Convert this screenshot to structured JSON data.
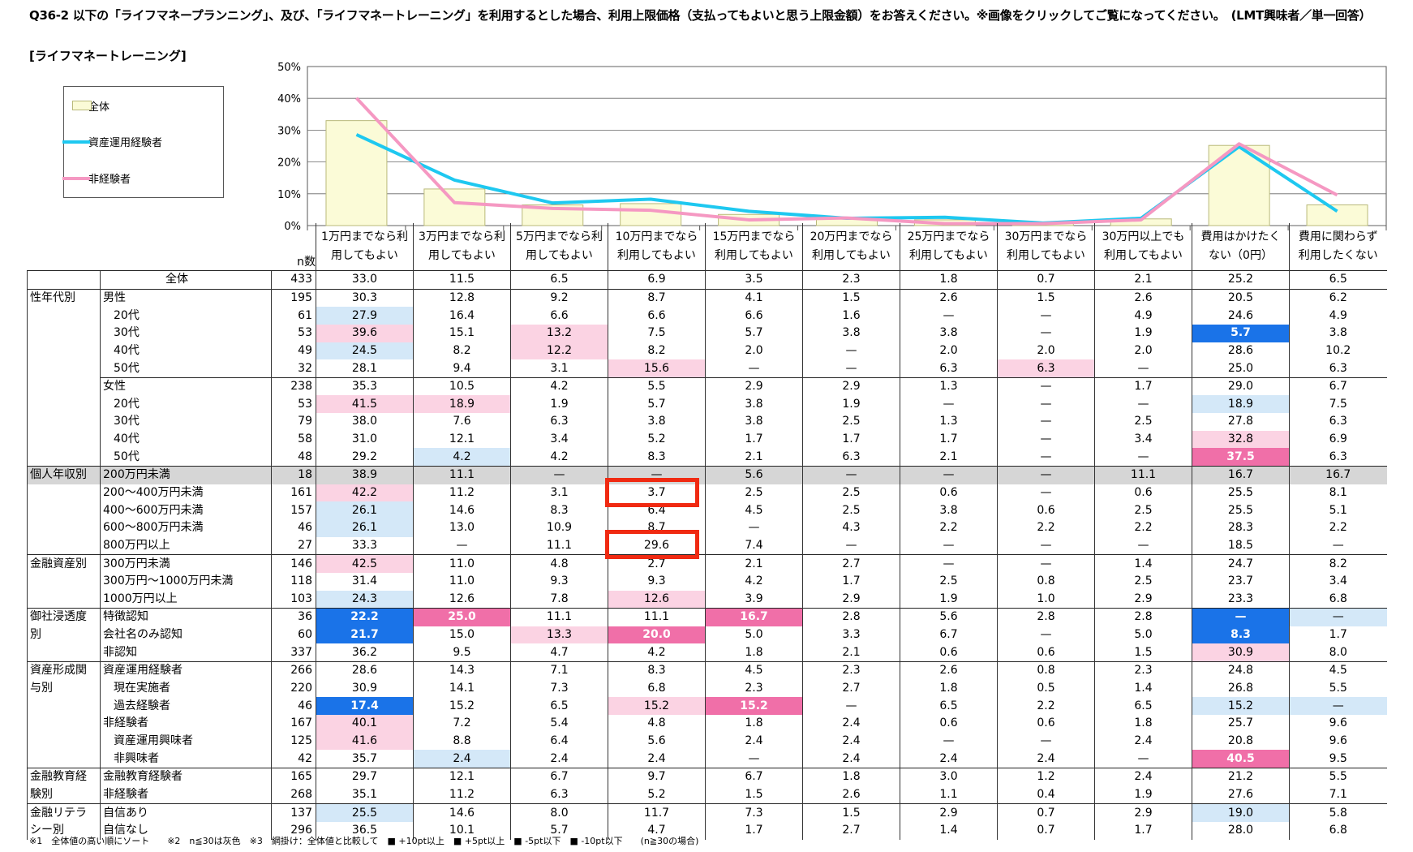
{
  "header": {
    "question": "Q36-2 以下の「ライフマネープランニング」、及び、「ライフマネートレーニング」を利用するとした場合、利用上限価格（支払ってもよいと思う上限金額）をお答えください。※画像をクリックしてご覧になってください。　(LMT興味者／単一回答）",
    "section": "[ライフマネートレーニング]"
  },
  "colors": {
    "total_bar": "#fbfbd7",
    "total_bar_border": "#b9b97a",
    "experienced": "#1ec8f0",
    "non_experienced": "#f598c2"
  },
  "chart_data": {
    "type": "bar",
    "categories": [
      "1万円までなら利用してもよい",
      "3万円までなら利用してもよい",
      "5万円までなら利用してもよい",
      "10万円までなら利用してもよい",
      "15万円までなら利用してもよい",
      "20万円までなら利用してもよい",
      "25万円までなら利用してもよい",
      "30万円までなら利用してもよい",
      "30万円以上でも利用してもよい",
      "費用はかけたくない（0円）",
      "費用に関わらず利用したくない"
    ],
    "series": [
      {
        "name": "全体",
        "kind": "bar",
        "values": [
          33.0,
          11.5,
          6.5,
          6.9,
          3.5,
          2.3,
          1.8,
          0.7,
          2.1,
          25.2,
          6.5
        ]
      },
      {
        "name": "資産運用経験者",
        "kind": "line",
        "values": [
          28.6,
          14.3,
          7.1,
          8.3,
          4.5,
          2.3,
          2.6,
          0.8,
          2.3,
          24.8,
          4.5
        ]
      },
      {
        "name": "非経験者",
        "kind": "line",
        "values": [
          40.1,
          7.2,
          5.4,
          4.8,
          1.8,
          2.4,
          0.6,
          0.6,
          1.8,
          25.7,
          9.6
        ]
      }
    ],
    "yticks": [
      "0%",
      "10%",
      "20%",
      "30%",
      "40%",
      "50%"
    ],
    "ylim": [
      0,
      50
    ],
    "legend_position": "top-left"
  },
  "table": {
    "n_label": "n数",
    "rows": [
      {
        "g": "",
        "s": "全体",
        "n": "433",
        "v": [
          "33.0",
          "11.5",
          "6.5",
          "6.9",
          "3.5",
          "2.3",
          "1.8",
          "0.7",
          "2.1",
          "25.2",
          "6.5"
        ],
        "h": {},
        "top": true,
        "center": true
      },
      {
        "g": "性年代別",
        "s": "男性",
        "n": "195",
        "v": [
          "30.3",
          "12.8",
          "9.2",
          "8.7",
          "4.1",
          "1.5",
          "2.6",
          "1.5",
          "2.6",
          "20.5",
          "6.2"
        ],
        "h": {},
        "top": true
      },
      {
        "g": "",
        "s": "20代",
        "n": "61",
        "v": [
          "27.9",
          "16.4",
          "6.6",
          "6.6",
          "6.6",
          "1.6",
          "—",
          "—",
          "4.9",
          "24.6",
          "4.9"
        ],
        "h": {
          "0": "m5"
        },
        "ind": true
      },
      {
        "g": "",
        "s": "30代",
        "n": "53",
        "v": [
          "39.6",
          "15.1",
          "13.2",
          "7.5",
          "5.7",
          "3.8",
          "3.8",
          "—",
          "1.9",
          "5.7",
          "3.8"
        ],
        "h": {
          "0": "p5",
          "2": "p5",
          "9": "m10"
        },
        "ind": true
      },
      {
        "g": "",
        "s": "40代",
        "n": "49",
        "v": [
          "24.5",
          "8.2",
          "12.2",
          "8.2",
          "2.0",
          "—",
          "2.0",
          "2.0",
          "2.0",
          "28.6",
          "10.2"
        ],
        "h": {
          "0": "m5",
          "2": "p5"
        },
        "ind": true
      },
      {
        "g": "",
        "s": "50代",
        "n": "32",
        "v": [
          "28.1",
          "9.4",
          "3.1",
          "15.6",
          "—",
          "—",
          "6.3",
          "6.3",
          "—",
          "25.0",
          "6.3"
        ],
        "h": {
          "3": "p5",
          "7": "p5"
        },
        "ind": true
      },
      {
        "g": "",
        "s": "女性",
        "n": "238",
        "v": [
          "35.3",
          "10.5",
          "4.2",
          "5.5",
          "2.9",
          "2.9",
          "1.3",
          "—",
          "1.7",
          "29.0",
          "6.7"
        ],
        "h": {},
        "top": true,
        "subtop": true
      },
      {
        "g": "",
        "s": "20代",
        "n": "53",
        "v": [
          "41.5",
          "18.9",
          "1.9",
          "5.7",
          "3.8",
          "1.9",
          "—",
          "—",
          "—",
          "18.9",
          "7.5"
        ],
        "h": {
          "0": "p5",
          "1": "p5",
          "9": "m5"
        },
        "ind": true
      },
      {
        "g": "",
        "s": "30代",
        "n": "79",
        "v": [
          "38.0",
          "7.6",
          "6.3",
          "3.8",
          "3.8",
          "2.5",
          "1.3",
          "—",
          "2.5",
          "27.8",
          "6.3"
        ],
        "h": {},
        "ind": true
      },
      {
        "g": "",
        "s": "40代",
        "n": "58",
        "v": [
          "31.0",
          "12.1",
          "3.4",
          "5.2",
          "1.7",
          "1.7",
          "1.7",
          "—",
          "3.4",
          "32.8",
          "6.9"
        ],
        "h": {
          "9": "p5"
        },
        "ind": true
      },
      {
        "g": "",
        "s": "50代",
        "n": "48",
        "v": [
          "29.2",
          "4.2",
          "4.2",
          "8.3",
          "2.1",
          "6.3",
          "2.1",
          "—",
          "—",
          "37.5",
          "6.3"
        ],
        "h": {
          "1": "m5",
          "9": "p10"
        },
        "ind": true
      },
      {
        "g": "個人年収別",
        "s": "200万円未満",
        "n": "18",
        "v": [
          "38.9",
          "11.1",
          "—",
          "—",
          "5.6",
          "—",
          "—",
          "—",
          "11.1",
          "16.7",
          "16.7"
        ],
        "h": {},
        "top": true,
        "gray": true
      },
      {
        "g": "",
        "s": "200～400万円未満",
        "n": "161",
        "v": [
          "42.2",
          "11.2",
          "3.1",
          "3.7",
          "2.5",
          "2.5",
          "0.6",
          "—",
          "0.6",
          "25.5",
          "8.1"
        ],
        "h": {
          "0": "p5"
        }
      },
      {
        "g": "",
        "s": "400～600万円未満",
        "n": "157",
        "v": [
          "26.1",
          "14.6",
          "8.3",
          "6.4",
          "4.5",
          "2.5",
          "3.8",
          "0.6",
          "2.5",
          "25.5",
          "5.1"
        ],
        "h": {
          "0": "m5"
        }
      },
      {
        "g": "",
        "s": "600～800万円未満",
        "n": "46",
        "v": [
          "26.1",
          "13.0",
          "10.9",
          "8.7",
          "—",
          "4.3",
          "2.2",
          "2.2",
          "2.2",
          "28.3",
          "2.2"
        ],
        "h": {
          "0": "m5"
        }
      },
      {
        "g": "",
        "s": "800万円以上",
        "n": "27",
        "v": [
          "33.3",
          "—",
          "11.1",
          "29.6",
          "7.4",
          "—",
          "—",
          "—",
          "—",
          "18.5",
          "—"
        ],
        "h": {}
      },
      {
        "g": "金融資産別",
        "s": "300万円未満",
        "n": "146",
        "v": [
          "42.5",
          "11.0",
          "4.8",
          "2.7",
          "2.1",
          "2.7",
          "—",
          "—",
          "1.4",
          "24.7",
          "8.2"
        ],
        "h": {
          "0": "p5"
        },
        "top": true
      },
      {
        "g": "",
        "s": "300万円～1000万円未満",
        "n": "118",
        "v": [
          "31.4",
          "11.0",
          "9.3",
          "9.3",
          "4.2",
          "1.7",
          "2.5",
          "0.8",
          "2.5",
          "23.7",
          "3.4"
        ],
        "h": {}
      },
      {
        "g": "",
        "s": "1000万円以上",
        "n": "103",
        "v": [
          "24.3",
          "12.6",
          "7.8",
          "12.6",
          "3.9",
          "2.9",
          "1.9",
          "1.0",
          "2.9",
          "23.3",
          "6.8"
        ],
        "h": {
          "0": "m5",
          "3": "p5"
        }
      },
      {
        "g": "御社浸透度",
        "s": "特徴認知",
        "n": "36",
        "v": [
          "22.2",
          "25.0",
          "11.1",
          "11.1",
          "16.7",
          "2.8",
          "5.6",
          "2.8",
          "2.8",
          "—",
          "—"
        ],
        "h": {
          "0": "m10",
          "1": "p10",
          "4": "p10",
          "9": "m10",
          "10": "m5"
        },
        "top": true
      },
      {
        "g": "別",
        "s": "会社名のみ認知",
        "n": "60",
        "v": [
          "21.7",
          "15.0",
          "13.3",
          "20.0",
          "5.0",
          "3.3",
          "6.7",
          "—",
          "5.0",
          "8.3",
          "1.7"
        ],
        "h": {
          "0": "m10",
          "2": "p5",
          "3": "p10",
          "9": "m10"
        }
      },
      {
        "g": "",
        "s": "非認知",
        "n": "337",
        "v": [
          "36.2",
          "9.5",
          "4.7",
          "4.2",
          "1.8",
          "2.1",
          "0.6",
          "0.6",
          "1.5",
          "30.9",
          "8.0"
        ],
        "h": {
          "9": "p5"
        }
      },
      {
        "g": "資産形成関",
        "s": "資産運用経験者",
        "n": "266",
        "v": [
          "28.6",
          "14.3",
          "7.1",
          "8.3",
          "4.5",
          "2.3",
          "2.6",
          "0.8",
          "2.3",
          "24.8",
          "4.5"
        ],
        "h": {},
        "top": true
      },
      {
        "g": "与別",
        "s": "現在実施者",
        "n": "220",
        "v": [
          "30.9",
          "14.1",
          "7.3",
          "6.8",
          "2.3",
          "2.7",
          "1.8",
          "0.5",
          "1.4",
          "26.8",
          "5.5"
        ],
        "h": {},
        "ind": true
      },
      {
        "g": "",
        "s": "過去経験者",
        "n": "46",
        "v": [
          "17.4",
          "15.2",
          "6.5",
          "15.2",
          "15.2",
          "—",
          "6.5",
          "2.2",
          "6.5",
          "15.2",
          "—"
        ],
        "h": {
          "0": "m10",
          "3": "p5",
          "4": "p10",
          "9": "m5",
          "10": "m5"
        },
        "ind": true
      },
      {
        "g": "",
        "s": "非経験者",
        "n": "167",
        "v": [
          "40.1",
          "7.2",
          "5.4",
          "4.8",
          "1.8",
          "2.4",
          "0.6",
          "0.6",
          "1.8",
          "25.7",
          "9.6"
        ],
        "h": {
          "0": "p5"
        }
      },
      {
        "g": "",
        "s": "資産運用興味者",
        "n": "125",
        "v": [
          "41.6",
          "8.8",
          "6.4",
          "5.6",
          "2.4",
          "2.4",
          "—",
          "—",
          "2.4",
          "20.8",
          "9.6"
        ],
        "h": {
          "0": "p5"
        },
        "ind": true
      },
      {
        "g": "",
        "s": "非興味者",
        "n": "42",
        "v": [
          "35.7",
          "2.4",
          "2.4",
          "2.4",
          "—",
          "2.4",
          "2.4",
          "2.4",
          "—",
          "40.5",
          "9.5"
        ],
        "h": {
          "1": "m5",
          "9": "p10"
        },
        "ind": true
      },
      {
        "g": "金融教育経",
        "s": "金融教育経験者",
        "n": "165",
        "v": [
          "29.7",
          "12.1",
          "6.7",
          "9.7",
          "6.7",
          "1.8",
          "3.0",
          "1.2",
          "2.4",
          "21.2",
          "5.5"
        ],
        "h": {},
        "top": true
      },
      {
        "g": "験別",
        "s": "非経験者",
        "n": "268",
        "v": [
          "35.1",
          "11.2",
          "6.3",
          "5.2",
          "1.5",
          "2.6",
          "1.1",
          "0.4",
          "1.9",
          "27.6",
          "7.1"
        ],
        "h": {}
      },
      {
        "g": "金融リテラ",
        "s": "自信あり",
        "n": "137",
        "v": [
          "25.5",
          "14.6",
          "8.0",
          "11.7",
          "7.3",
          "1.5",
          "2.9",
          "0.7",
          "2.9",
          "19.0",
          "5.8"
        ],
        "h": {
          "0": "m5",
          "9": "m5"
        },
        "top": true
      },
      {
        "g": "シー別",
        "s": "自信なし",
        "n": "296",
        "v": [
          "36.5",
          "10.1",
          "5.7",
          "4.7",
          "1.7",
          "2.7",
          "1.4",
          "0.7",
          "1.7",
          "28.0",
          "6.8"
        ],
        "h": {}
      }
    ]
  },
  "footnote": "※1　全体値の高い順にソート　　※2　n≦30は灰色　※3　網掛け：全体値と比較して　■ +10pt以上　■ +5pt以上　■ -5pt以下　■ -10pt以下　　(n≧30の場合)"
}
